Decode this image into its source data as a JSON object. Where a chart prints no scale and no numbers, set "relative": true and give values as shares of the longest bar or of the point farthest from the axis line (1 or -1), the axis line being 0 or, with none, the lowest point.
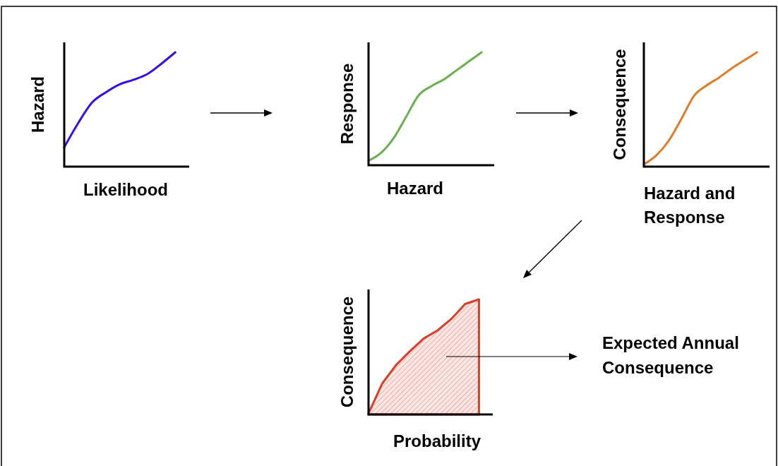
{
  "chart_data": [
    {
      "type": "line",
      "relative": true,
      "xlabel": "Likelihood",
      "ylabel": "Hazard",
      "categories": [
        null,
        null,
        null,
        null,
        null,
        null,
        null,
        null,
        null,
        null
      ],
      "series": [
        {
          "color": "#3311ee",
          "values": [
            0.17,
            0.38,
            0.56,
            0.65,
            0.72,
            0.76,
            0.81,
            0.9,
            1,
            null
          ]
        }
      ]
    },
    {
      "type": "line",
      "relative": true,
      "xlabel": "Hazard",
      "ylabel": "Response",
      "categories": [
        null,
        null,
        null,
        null,
        null,
        null,
        null,
        null,
        null,
        null,
        null
      ],
      "series": [
        {
          "color": "#6ab04c",
          "values": [
            0.04,
            0.11,
            0.24,
            0.43,
            0.62,
            0.7,
            0.76,
            0.84,
            0.92,
            1,
            null
          ]
        }
      ]
    },
    {
      "type": "line",
      "relative": true,
      "xlabel": "Hazard and Response",
      "ylabel": "Consequence",
      "categories": [
        null,
        null,
        null,
        null,
        null,
        null,
        null,
        null,
        null,
        null,
        null
      ],
      "series": [
        {
          "color": "#e07b27",
          "values": [
            0.02,
            0.1,
            0.23,
            0.42,
            0.62,
            0.71,
            0.78,
            0.86,
            0.93,
            1,
            null
          ]
        }
      ]
    },
    {
      "type": "area",
      "relative": true,
      "xlabel": "Probability",
      "ylabel": "Consequence",
      "categories": [
        null,
        null,
        null,
        null,
        null,
        null,
        null,
        null,
        null,
        null
      ],
      "series": [
        {
          "color": "#d9402b",
          "values": [
            0.01,
            0.27,
            0.43,
            0.55,
            0.66,
            0.73,
            0.83,
            0.96,
            1,
            null
          ]
        }
      ],
      "annotations": [
        "Expected Annual Consequence"
      ]
    }
  ]
}
